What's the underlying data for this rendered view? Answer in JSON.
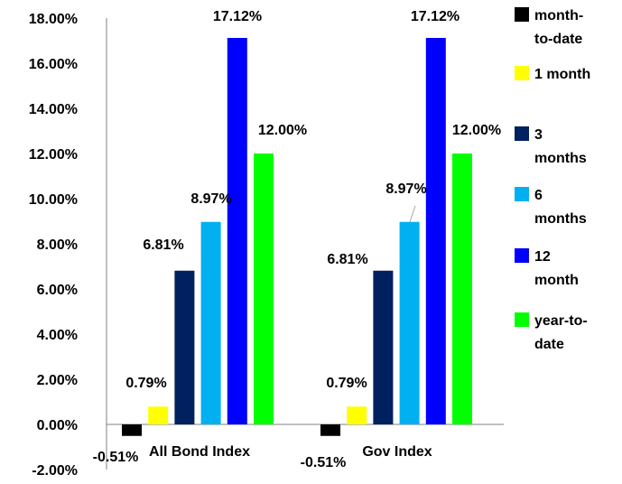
{
  "chart_data": {
    "type": "bar",
    "title": "",
    "xlabel": "",
    "ylabel": "",
    "categories": [
      "All Bond Index",
      "Gov Index"
    ],
    "series": [
      {
        "name": "month-to-date",
        "color": "#000000",
        "values": [
          -0.51,
          -0.51
        ],
        "labels": [
          "-0.51%",
          "-0.51%"
        ],
        "legend_lines": [
          "month-",
          "to-date"
        ]
      },
      {
        "name": "1 month",
        "color": "#ffff00",
        "values": [
          0.79,
          0.79
        ],
        "labels": [
          "0.79%",
          "0.79%"
        ],
        "legend_lines": [
          "1 month"
        ]
      },
      {
        "name": "3 months",
        "color": "#002060",
        "values": [
          6.81,
          6.81
        ],
        "labels": [
          "6.81%",
          "6.81%"
        ],
        "legend_lines": [
          "3",
          "months"
        ]
      },
      {
        "name": "6 months",
        "color": "#00b0f0",
        "values": [
          8.97,
          8.97
        ],
        "labels": [
          "8.97%",
          "8.97%"
        ],
        "legend_lines": [
          "6",
          "months"
        ]
      },
      {
        "name": "12 month",
        "color": "#0000ff",
        "values": [
          17.12,
          17.12
        ],
        "labels": [
          "17.12%",
          "17.12%"
        ],
        "legend_lines": [
          "12",
          "month"
        ]
      },
      {
        "name": "year-to-date",
        "color": "#00ff00",
        "values": [
          12.0,
          12.0
        ],
        "labels": [
          "12.00%",
          "12.00%"
        ],
        "legend_lines": [
          "year-to-",
          "date"
        ]
      }
    ],
    "ylim": [
      -2,
      18
    ],
    "yticks": [
      "-2.00%",
      "0.00%",
      "2.00%",
      "4.00%",
      "6.00%",
      "8.00%",
      "10.00%",
      "12.00%",
      "14.00%",
      "16.00%",
      "18.00%"
    ],
    "ytick_values": [
      -2,
      0,
      2,
      4,
      6,
      8,
      10,
      12,
      14,
      16,
      18
    ],
    "grid": false,
    "legend_position": "right"
  }
}
